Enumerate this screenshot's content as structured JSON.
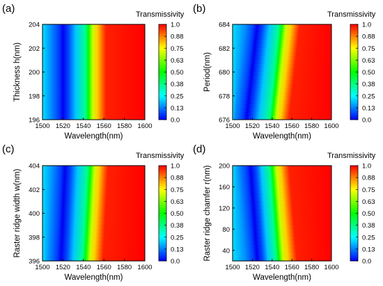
{
  "colorbar": {
    "title": "Transmissivity",
    "ticks": [
      "1.0",
      "0.88",
      "0.75",
      "0.63",
      "0.50",
      "0.38",
      "0.25",
      "0.13",
      "0.0"
    ],
    "range": [
      0,
      1
    ],
    "colors": [
      "#0000ff",
      "#0080ff",
      "#00ffff",
      "#00ff80",
      "#00ff00",
      "#80ff00",
      "#ffff00",
      "#ff8000",
      "#ff0000"
    ]
  },
  "chart_data": [
    {
      "type": "heatmap",
      "panel_label": "(a)",
      "xlabel": "Wavelength(nm)",
      "ylabel": "Thickness h(nm)",
      "xlim": [
        1500,
        1600
      ],
      "ylim": [
        196,
        204
      ],
      "xticks": [
        "1500",
        "1520",
        "1540",
        "1560",
        "1580",
        "1600"
      ],
      "yticks": [
        "196",
        "198",
        "200",
        "202",
        "204"
      ],
      "transmission_edge": {
        "min_wavelength": [
          1520,
          1520
        ],
        "half_transmission_wavelength": [
          1545,
          1545
        ],
        "full_transmission_wavelength": [
          1562,
          1562
        ]
      }
    },
    {
      "type": "heatmap",
      "panel_label": "(b)",
      "xlabel": "Wavelength(nm)",
      "ylabel": "Period(nm)",
      "xlim": [
        1500,
        1600
      ],
      "ylim": [
        676,
        684
      ],
      "xticks": [
        "1500",
        "1520",
        "1540",
        "1560",
        "1580",
        "1600"
      ],
      "yticks": [
        "676",
        "678",
        "680",
        "682",
        "684"
      ],
      "transmission_edge": {
        "min_wavelength": [
          1514,
          1525
        ],
        "half_transmission_wavelength": [
          1540,
          1550
        ],
        "full_transmission_wavelength": [
          1557,
          1568
        ]
      }
    },
    {
      "type": "heatmap",
      "panel_label": "(c)",
      "xlabel": "Wavelength(nm)",
      "ylabel": "Raster ridge width w(nm)",
      "xlim": [
        1500,
        1600
      ],
      "ylim": [
        396,
        404
      ],
      "xticks": [
        "1500",
        "1520",
        "1540",
        "1560",
        "1580",
        "1600"
      ],
      "yticks": [
        "396",
        "398",
        "400",
        "402",
        "404"
      ],
      "transmission_edge": {
        "min_wavelength": [
          1518,
          1522
        ],
        "half_transmission_wavelength": [
          1542,
          1547
        ],
        "full_transmission_wavelength": [
          1559,
          1564
        ]
      }
    },
    {
      "type": "heatmap",
      "panel_label": "(d)",
      "xlabel": "Wavelength(nm)",
      "ylabel": "Raster ridge chamfer r(nm)",
      "xlim": [
        1500,
        1600
      ],
      "ylim": [
        20,
        200
      ],
      "xticks": [
        "1500",
        "1520",
        "1540",
        "1560",
        "1580",
        "1600"
      ],
      "yticks": [
        "40",
        "80",
        "120",
        "160",
        "200"
      ],
      "transmission_edge": {
        "min_wavelength": [
          1525,
          1518
        ],
        "half_transmission_wavelength": [
          1547,
          1540
        ],
        "full_transmission_wavelength": [
          1565,
          1557
        ]
      }
    }
  ]
}
